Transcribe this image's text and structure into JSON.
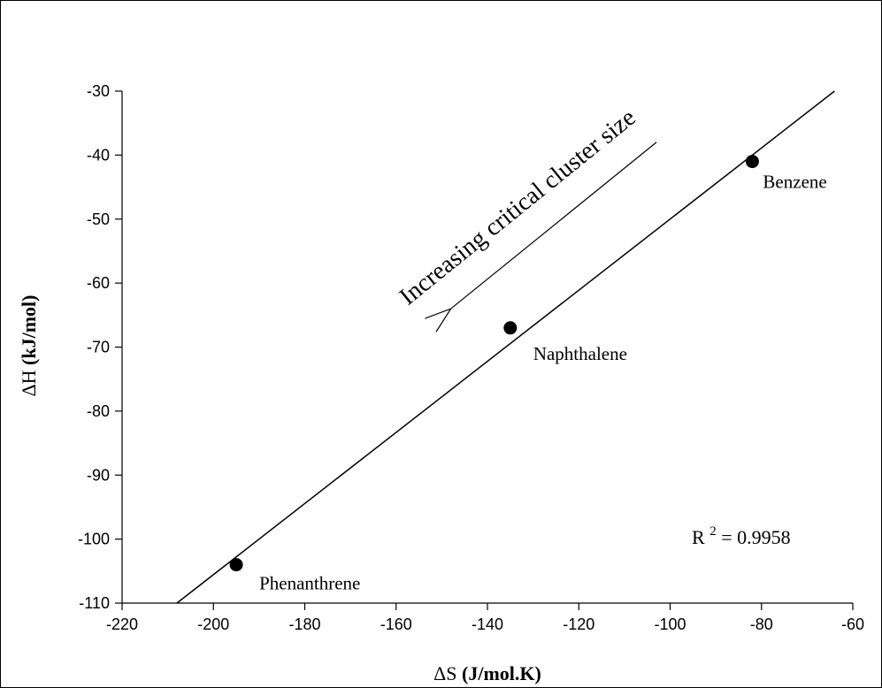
{
  "chart_data": {
    "type": "scatter",
    "xlabel": {
      "symbol": "ΔS ",
      "unit": "(J/mol.K)"
    },
    "ylabel": {
      "symbol": "ΔH ",
      "unit": "(kJ/mol)"
    },
    "xlim": [
      -220,
      -60
    ],
    "ylim": [
      -110,
      -30
    ],
    "xticks": [
      -220,
      -200,
      -180,
      -160,
      -140,
      -120,
      -100,
      -80,
      -60
    ],
    "yticks": [
      -30,
      -40,
      -50,
      -60,
      -70,
      -80,
      -90,
      -100,
      -110
    ],
    "grid": false,
    "points": [
      {
        "x": -82,
        "y": -41,
        "label": "Benzene"
      },
      {
        "x": -135,
        "y": -67,
        "label": "Naphthalene"
      },
      {
        "x": -195,
        "y": -104,
        "label": "Phenanthrene"
      }
    ],
    "fit_line": {
      "x": [
        -208,
        -64
      ],
      "y": [
        -110,
        -30
      ]
    },
    "annotations": {
      "r_squared_prefix": "R",
      "r_squared_exponent": "2",
      "r_squared_value": " = 0.9958",
      "arrow_text": "Increasing critical cluster size",
      "arrow_from": {
        "x": -103,
        "y": -38
      },
      "arrow_to": {
        "x": -148,
        "y": -64
      }
    }
  }
}
